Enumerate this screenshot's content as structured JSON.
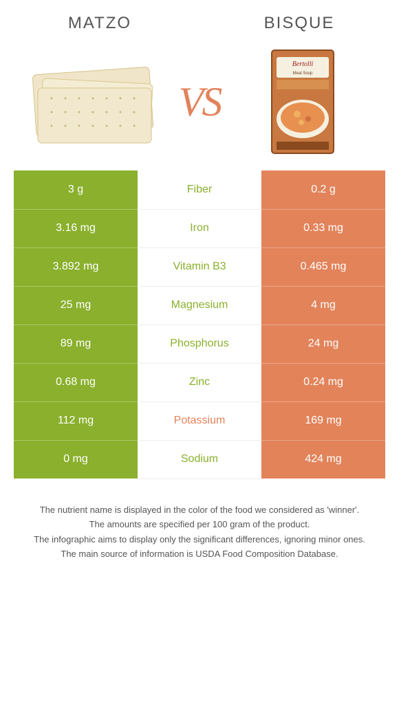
{
  "header": {
    "left": "MATZO",
    "right": "BISQUE"
  },
  "vs": "VS",
  "colors": {
    "left_bg": "#8ab02d",
    "right_bg": "#e2835a",
    "middle_bg": "#ffffff",
    "vs_color": "#e2835a"
  },
  "rows": [
    {
      "left": "3 g",
      "label": "Fiber",
      "right": "0.2 g",
      "winner": "left"
    },
    {
      "left": "3.16 mg",
      "label": "Iron",
      "right": "0.33 mg",
      "winner": "left"
    },
    {
      "left": "3.892 mg",
      "label": "Vitamin B3",
      "right": "0.465 mg",
      "winner": "left"
    },
    {
      "left": "25 mg",
      "label": "Magnesium",
      "right": "4 mg",
      "winner": "left"
    },
    {
      "left": "89 mg",
      "label": "Phosphorus",
      "right": "24 mg",
      "winner": "left"
    },
    {
      "left": "0.68 mg",
      "label": "Zinc",
      "right": "0.24 mg",
      "winner": "left"
    },
    {
      "left": "112 mg",
      "label": "Potassium",
      "right": "169 mg",
      "winner": "right"
    },
    {
      "left": "0 mg",
      "label": "Sodium",
      "right": "424 mg",
      "winner": "left"
    }
  ],
  "footer": {
    "line1": "The nutrient name is displayed in the color of the food we considered as 'winner'.",
    "line2": "The amounts are specified per 100 gram of the product.",
    "line3": "The infographic aims to display only the significant differences, ignoring minor ones.",
    "line4": "The main source of information is USDA Food Composition Database."
  }
}
